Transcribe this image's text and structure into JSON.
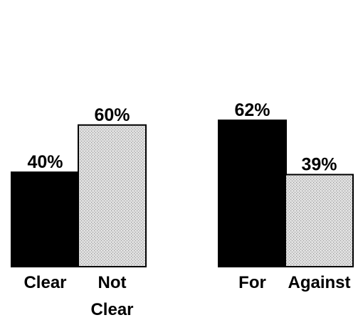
{
  "chart_data": [
    {
      "type": "bar",
      "categories": [
        "Clear",
        "Not\nClear"
      ],
      "values": [
        40,
        60
      ],
      "value_labels": [
        "40%",
        "60%"
      ],
      "ylim": [
        0,
        100
      ],
      "grid": false,
      "legend": "none",
      "colors": [
        "#000000",
        "#d8d8d8"
      ]
    },
    {
      "type": "bar",
      "categories": [
        "For",
        "Against"
      ],
      "values": [
        62,
        39
      ],
      "value_labels": [
        "62%",
        "39%"
      ],
      "ylim": [
        0,
        100
      ],
      "grid": false,
      "legend": "none",
      "colors": [
        "#000000",
        "#d8d8d8"
      ]
    }
  ]
}
